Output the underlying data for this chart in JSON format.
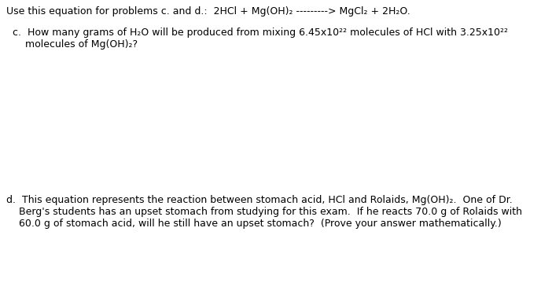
{
  "background_color": "#ffffff",
  "header_line": "Use this equation for problems c. and d.:  2HCl + Mg(OH)₂ ---------> MgCl₂ + 2H₂O.",
  "question_c_line1": "c.  How many grams of H₂O will be produced from mixing 6.45x10²² molecules of HCl with 3.25x10²²",
  "question_c_line2": "    molecules of Mg(OH)₂?",
  "question_d_line1": "d.  This equation represents the reaction between stomach acid, HCl and Rolaids, Mg(OH)₂.  One of Dr.",
  "question_d_line2": "    Berg's students has an upset stomach from studying for this exam.  If he reacts 70.0 g of Rolaids with",
  "question_d_line3": "    60.0 g of stomach acid, will he still have an upset stomach?  (Prove your answer mathematically.)",
  "font_size": 9.0,
  "font_family": "DejaVu Sans",
  "text_color": "#000000",
  "fig_width": 6.88,
  "fig_height": 3.6,
  "dpi": 100
}
